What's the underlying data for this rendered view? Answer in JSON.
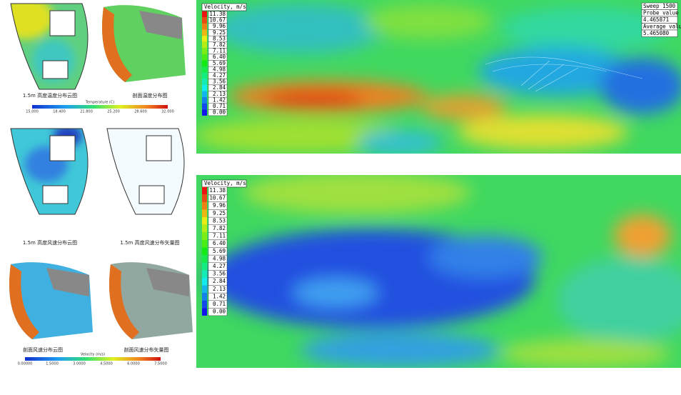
{
  "left_panels": {
    "temperature": {
      "captions": [
        "1.5m 高度温度分布云图",
        "剖面温度分布图"
      ],
      "colorbar": {
        "title": "Temperature (C)",
        "ticks": [
          "15.000",
          "18.400",
          "21.800",
          "25.200",
          "28.600",
          "32.000"
        ]
      }
    },
    "wind_plan": {
      "captions": [
        "1.5m 高度风速分布云图",
        "1.5m 高度风速分布矢量图"
      ]
    },
    "wind_section": {
      "captions": [
        "剖面风速分布云图",
        "剖面风速分布矢量图"
      ],
      "colorbar": {
        "title": "Velocity (m/s)",
        "ticks": [
          "0.00000",
          "1.5000",
          "3.0000",
          "4.5000",
          "6.0000",
          "7.5000"
        ]
      }
    }
  },
  "right_panels": [
    {
      "legend": {
        "title": "Velocity, m/s",
        "labels": [
          "11.38",
          "10.67",
          "9.96",
          "9.25",
          "8.53",
          "7.82",
          "7.11",
          "6.40",
          "5.69",
          "4.98",
          "4.27",
          "3.56",
          "2.84",
          "2.13",
          "1.42",
          "0.71",
          "0.00"
        ]
      },
      "probe": [
        "Sweep 1500",
        "Probe value",
        "4.465871",
        "Average value",
        "5.465080"
      ]
    },
    {
      "legend": {
        "title": "Velocity, m/s",
        "labels": [
          "11.38",
          "10.67",
          "9.96",
          "9.25",
          "8.53",
          "7.82",
          "7.11",
          "6.40",
          "5.69",
          "4.98",
          "4.27",
          "3.56",
          "2.84",
          "2.13",
          "1.42",
          "0.71",
          "0.00"
        ]
      }
    }
  ]
}
